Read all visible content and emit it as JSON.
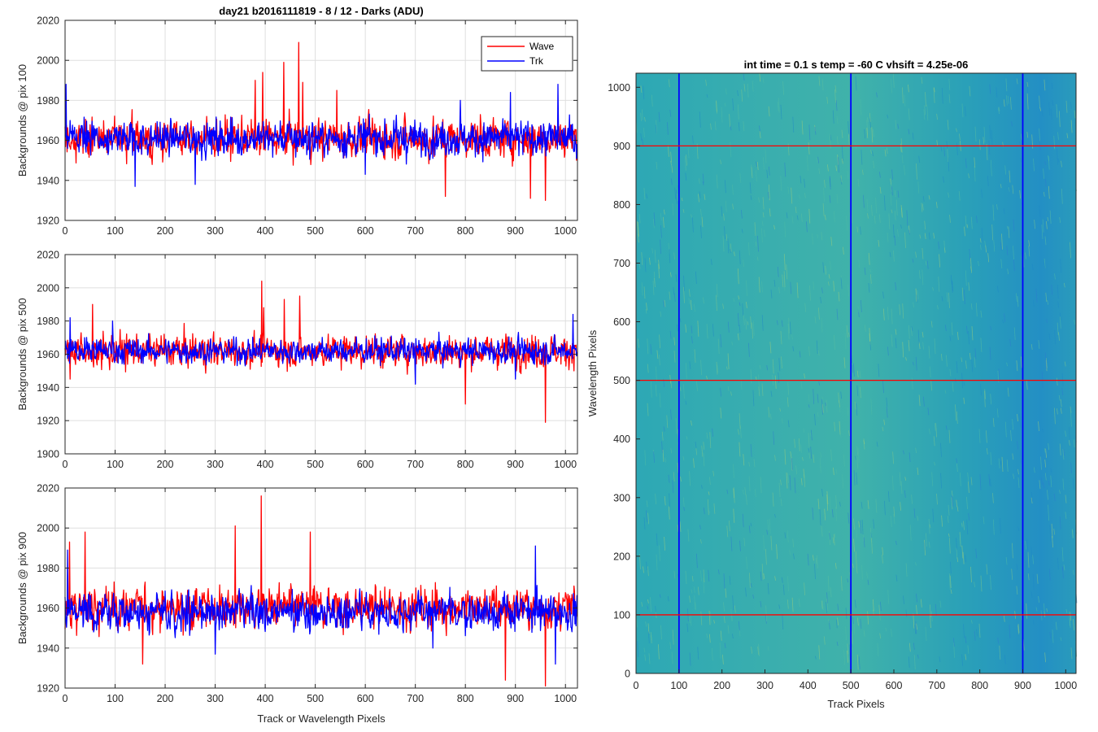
{
  "figure_title": "day21 b2016111819 - 8 / 12 - Darks (ADU)",
  "colors": {
    "wave": "#ff0000",
    "trk": "#0000ff",
    "image_base": "#2aa3b8"
  },
  "legend": {
    "entries": [
      "Wave",
      "Trk"
    ],
    "location": "top-right (top panel)"
  },
  "chart_data": [
    {
      "type": "line",
      "panel": "top",
      "xlabel": "",
      "ylabel": "Backgrounds @ pix 100",
      "xlim": [
        0,
        1024
      ],
      "ylim": [
        1920,
        2020
      ],
      "xticks": [
        0,
        100,
        200,
        300,
        400,
        500,
        600,
        700,
        800,
        900,
        1000
      ],
      "yticks": [
        1920,
        1940,
        1960,
        1980,
        2000,
        2020
      ],
      "grid": true,
      "series": [
        {
          "name": "Wave",
          "color": "#ff0000",
          "mean": 1961,
          "noise": 6.5,
          "peaks": [
            [
              467,
              2009
            ],
            [
              437,
              1999
            ],
            [
              395,
              1994
            ],
            [
              475,
              1989
            ],
            [
              380,
              1990
            ],
            [
              543,
              1985
            ],
            [
              930,
              1931
            ],
            [
              960,
              1930
            ],
            [
              760,
              1932
            ]
          ]
        },
        {
          "name": "Trk",
          "color": "#0000ff",
          "mean": 1961,
          "noise": 6,
          "peaks": [
            [
              2,
              1988
            ],
            [
              985,
              1988
            ],
            [
              890,
              1984
            ],
            [
              790,
              1980
            ],
            [
              140,
              1937
            ],
            [
              260,
              1938
            ],
            [
              600,
              1943
            ]
          ]
        }
      ]
    },
    {
      "type": "line",
      "panel": "middle",
      "xlabel": "",
      "ylabel": "Backgrounds @ pix 500",
      "xlim": [
        0,
        1024
      ],
      "ylim": [
        1900,
        2020
      ],
      "xticks": [
        0,
        100,
        200,
        300,
        400,
        500,
        600,
        700,
        800,
        900,
        1000
      ],
      "yticks": [
        1900,
        1920,
        1940,
        1960,
        1980,
        2000,
        2020
      ],
      "grid": true,
      "series": [
        {
          "name": "Wave",
          "color": "#ff0000",
          "mean": 1962,
          "noise": 6.5,
          "peaks": [
            [
              393,
              2004
            ],
            [
              469,
              1995
            ],
            [
              438,
              1993
            ],
            [
              397,
              1988
            ],
            [
              55,
              1990
            ],
            [
              960,
              1919
            ],
            [
              800,
              1930
            ],
            [
              10,
              1945
            ]
          ]
        },
        {
          "name": "Trk",
          "color": "#0000ff",
          "mean": 1962,
          "noise": 5,
          "peaks": [
            [
              1015,
              1984
            ],
            [
              10,
              1982
            ],
            [
              95,
              1980
            ],
            [
              900,
              1945
            ],
            [
              700,
              1942
            ]
          ]
        }
      ]
    },
    {
      "type": "line",
      "panel": "bottom",
      "xlabel": "Track or Wavelength Pixels",
      "ylabel": "Backgrounds @ pix 900",
      "xlim": [
        0,
        1024
      ],
      "ylim": [
        1920,
        2020
      ],
      "xticks": [
        0,
        100,
        200,
        300,
        400,
        500,
        600,
        700,
        800,
        900,
        1000
      ],
      "yticks": [
        1920,
        1940,
        1960,
        1980,
        2000,
        2020
      ],
      "grid": true,
      "series": [
        {
          "name": "Wave",
          "color": "#ff0000",
          "mean": 1960,
          "noise": 7,
          "peaks": [
            [
              392,
              2016
            ],
            [
              340,
              2001
            ],
            [
              490,
              1998
            ],
            [
              40,
              1998
            ],
            [
              9,
              1993
            ],
            [
              960,
              1921
            ],
            [
              880,
              1924
            ],
            [
              155,
              1932
            ]
          ]
        },
        {
          "name": "Trk",
          "color": "#0000ff",
          "mean": 1958,
          "noise": 6,
          "peaks": [
            [
              940,
              1991
            ],
            [
              5,
              1989
            ],
            [
              300,
              1937
            ],
            [
              735,
              1940
            ],
            [
              980,
              1932
            ]
          ]
        }
      ]
    },
    {
      "type": "heatmap",
      "panel": "right",
      "title": "int time = 0.1 s   temp = -60 C   vhsift = 4.25e-06",
      "xlabel": "Track Pixels",
      "ylabel": "Wavelength Pixels",
      "xlim": [
        0,
        1024
      ],
      "ylim": [
        0,
        1024
      ],
      "xticks": [
        0,
        100,
        200,
        300,
        400,
        500,
        600,
        700,
        800,
        900,
        1000
      ],
      "yticks": [
        0,
        100,
        200,
        300,
        400,
        500,
        600,
        700,
        800,
        900,
        1000
      ],
      "vertical_markers": {
        "color": "#0000ff",
        "x": [
          100,
          500,
          900
        ]
      },
      "horizontal_markers": {
        "color": "#ff0000",
        "y": [
          100,
          500,
          900
        ]
      }
    }
  ]
}
